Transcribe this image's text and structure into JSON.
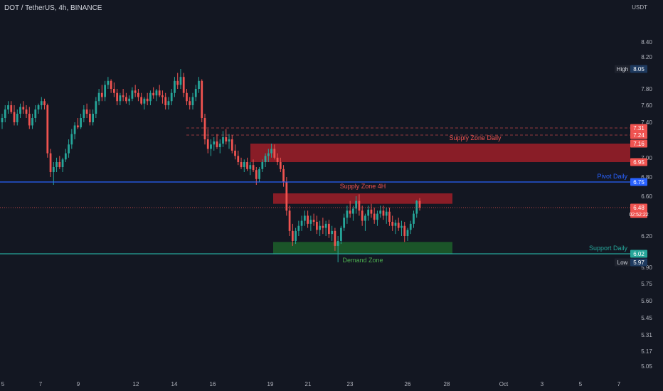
{
  "header": {
    "symbol": "DOT / TetherUS, 4h, BINANCE",
    "currency": "USDT"
  },
  "colors": {
    "background": "#131722",
    "up": "#26a69a",
    "down": "#ef5350",
    "pivot": "#2962ff",
    "support": "#26a69a",
    "supply_zone": "#b2202a",
    "demand_zone": "#1f6b2c",
    "axis_text": "#b2b5be"
  },
  "chart_data": {
    "type": "candlestick",
    "y_axis": {
      "ticks": [
        "8.40",
        "8.20",
        "7.80",
        "7.60",
        "7.40",
        "7.00",
        "6.80",
        "6.60",
        "6.20",
        "5.90",
        "5.75",
        "5.60",
        "5.45",
        "5.31",
        "5.17",
        "5.05"
      ],
      "price_labels": [
        {
          "label": "High",
          "value": "8.05",
          "style": "high"
        },
        {
          "value": "7.31",
          "style": "red"
        },
        {
          "value": "7.24",
          "style": "red"
        },
        {
          "value": "7.16",
          "style": "red"
        },
        {
          "value": "6.95",
          "style": "red"
        },
        {
          "value": "6.75",
          "style": "blue"
        },
        {
          "value": "6.48",
          "sub": "02:52:22",
          "style": "red"
        },
        {
          "value": "6.02",
          "style": "green"
        },
        {
          "label": "Low",
          "value": "5.97",
          "style": "low"
        }
      ]
    },
    "x_axis": {
      "ticks": [
        "5",
        "7",
        "9",
        "12",
        "14",
        "16",
        "19",
        "21",
        "23",
        "26",
        "28",
        "Oct",
        "3",
        "5",
        "7"
      ]
    },
    "lines": [
      {
        "name": "Pivot Daily",
        "value": 6.75,
        "color": "#2962ff"
      },
      {
        "name": "Support Daily",
        "value": 6.02,
        "color": "#26a69a"
      }
    ],
    "zones": [
      {
        "name": "Supply Zone Daily",
        "low": 6.95,
        "high": 7.16,
        "color": "#b2202a"
      },
      {
        "name": "Supply Zone 4H",
        "low": 6.52,
        "high": 6.63,
        "color": "#b2202a"
      },
      {
        "name": "Demand Zone",
        "low": 6.02,
        "high": 6.14,
        "color": "#1f6b2c"
      }
    ],
    "last_price": 6.48,
    "series_ohlc": [
      [
        7.4,
        7.5,
        7.3,
        7.45
      ],
      [
        7.45,
        7.6,
        7.4,
        7.55
      ],
      [
        7.55,
        7.65,
        7.5,
        7.6
      ],
      [
        7.6,
        7.65,
        7.5,
        7.52
      ],
      [
        7.52,
        7.6,
        7.35,
        7.4
      ],
      [
        7.4,
        7.55,
        7.35,
        7.5
      ],
      [
        7.5,
        7.62,
        7.45,
        7.58
      ],
      [
        7.58,
        7.65,
        7.5,
        7.55
      ],
      [
        7.55,
        7.6,
        7.45,
        7.5
      ],
      [
        7.5,
        7.58,
        7.3,
        7.35
      ],
      [
        7.35,
        7.5,
        7.3,
        7.45
      ],
      [
        7.45,
        7.6,
        7.4,
        7.55
      ],
      [
        7.55,
        7.62,
        7.5,
        7.6
      ],
      [
        7.6,
        7.7,
        7.55,
        7.65
      ],
      [
        7.65,
        7.68,
        7.55,
        7.6
      ],
      [
        7.6,
        7.62,
        7.0,
        7.05
      ],
      [
        7.05,
        7.1,
        6.8,
        6.85
      ],
      [
        6.85,
        6.95,
        6.72,
        6.9
      ],
      [
        6.9,
        7.0,
        6.85,
        6.95
      ],
      [
        6.95,
        7.02,
        6.88,
        6.9
      ],
      [
        6.9,
        7.0,
        6.85,
        6.98
      ],
      [
        6.98,
        7.1,
        6.95,
        7.05
      ],
      [
        7.05,
        7.2,
        7.0,
        7.15
      ],
      [
        7.15,
        7.3,
        7.1,
        7.25
      ],
      [
        7.25,
        7.4,
        7.2,
        7.35
      ],
      [
        7.35,
        7.45,
        7.3,
        7.32
      ],
      [
        7.32,
        7.5,
        7.3,
        7.45
      ],
      [
        7.45,
        7.6,
        7.4,
        7.55
      ],
      [
        7.55,
        7.62,
        7.45,
        7.5
      ],
      [
        7.5,
        7.55,
        7.35,
        7.4
      ],
      [
        7.4,
        7.55,
        7.35,
        7.5
      ],
      [
        7.5,
        7.7,
        7.45,
        7.65
      ],
      [
        7.65,
        7.8,
        7.6,
        7.75
      ],
      [
        7.75,
        7.85,
        7.65,
        7.7
      ],
      [
        7.7,
        7.9,
        7.65,
        7.85
      ],
      [
        7.85,
        7.95,
        7.8,
        7.9
      ],
      [
        7.9,
        7.92,
        7.75,
        7.8
      ],
      [
        7.8,
        7.88,
        7.7,
        7.75
      ],
      [
        7.75,
        7.8,
        7.6,
        7.65
      ],
      [
        7.65,
        7.75,
        7.6,
        7.72
      ],
      [
        7.72,
        7.8,
        7.65,
        7.7
      ],
      [
        7.7,
        7.75,
        7.62,
        7.65
      ],
      [
        7.65,
        7.72,
        7.6,
        7.68
      ],
      [
        7.68,
        7.82,
        7.65,
        7.78
      ],
      [
        7.78,
        7.85,
        7.7,
        7.75
      ],
      [
        7.75,
        7.8,
        7.65,
        7.7
      ],
      [
        7.7,
        7.75,
        7.6,
        7.62
      ],
      [
        7.62,
        7.7,
        7.55,
        7.68
      ],
      [
        7.68,
        7.75,
        7.6,
        7.65
      ],
      [
        7.65,
        7.78,
        7.6,
        7.75
      ],
      [
        7.75,
        7.82,
        7.68,
        7.72
      ],
      [
        7.72,
        7.8,
        7.65,
        7.78
      ],
      [
        7.78,
        7.85,
        7.7,
        7.72
      ],
      [
        7.72,
        7.78,
        7.62,
        7.7
      ],
      [
        7.7,
        7.75,
        7.55,
        7.6
      ],
      [
        7.6,
        7.7,
        7.55,
        7.65
      ],
      [
        7.65,
        7.8,
        7.6,
        7.75
      ],
      [
        7.75,
        7.95,
        7.7,
        7.9
      ],
      [
        7.9,
        8.0,
        7.8,
        7.85
      ],
      [
        7.85,
        8.05,
        7.8,
        7.95
      ],
      [
        7.95,
        8.0,
        7.7,
        7.75
      ],
      [
        7.75,
        7.8,
        7.6,
        7.65
      ],
      [
        7.65,
        7.7,
        7.55,
        7.6
      ],
      [
        7.6,
        7.75,
        7.55,
        7.7
      ],
      [
        7.7,
        7.85,
        7.65,
        7.8
      ],
      [
        7.8,
        7.95,
        7.75,
        7.9
      ],
      [
        7.9,
        7.92,
        7.4,
        7.45
      ],
      [
        7.45,
        7.5,
        7.15,
        7.2
      ],
      [
        7.2,
        7.3,
        7.05,
        7.1
      ],
      [
        7.1,
        7.2,
        7.02,
        7.15
      ],
      [
        7.15,
        7.22,
        7.08,
        7.18
      ],
      [
        7.18,
        7.25,
        7.1,
        7.12
      ],
      [
        7.12,
        7.2,
        7.05,
        7.16
      ],
      [
        7.16,
        7.28,
        7.12,
        7.22
      ],
      [
        7.22,
        7.3,
        7.15,
        7.18
      ],
      [
        7.18,
        7.25,
        7.1,
        7.2
      ],
      [
        7.2,
        7.24,
        7.05,
        7.08
      ],
      [
        7.08,
        7.15,
        6.98,
        7.02
      ],
      [
        7.02,
        7.08,
        6.92,
        6.95
      ],
      [
        6.95,
        7.0,
        6.88,
        6.9
      ],
      [
        6.9,
        6.98,
        6.85,
        6.95
      ],
      [
        6.95,
        7.0,
        6.86,
        6.88
      ],
      [
        6.88,
        6.95,
        6.82,
        6.92
      ],
      [
        6.92,
        6.98,
        6.85,
        6.87
      ],
      [
        6.87,
        6.9,
        6.72,
        6.78
      ],
      [
        6.78,
        6.9,
        6.75,
        6.88
      ],
      [
        6.88,
        6.98,
        6.85,
        6.95
      ],
      [
        6.95,
        7.05,
        6.9,
        7.02
      ],
      [
        7.02,
        7.1,
        6.95,
        7.05
      ],
      [
        7.05,
        7.16,
        7.0,
        7.1
      ],
      [
        7.1,
        7.15,
        6.98,
        7.0
      ],
      [
        7.0,
        7.05,
        6.92,
        6.95
      ],
      [
        6.95,
        7.0,
        6.85,
        6.88
      ],
      [
        6.88,
        6.92,
        6.7,
        6.75
      ],
      [
        6.75,
        6.8,
        6.4,
        6.45
      ],
      [
        6.45,
        6.5,
        6.2,
        6.25
      ],
      [
        6.25,
        6.32,
        6.1,
        6.15
      ],
      [
        6.15,
        6.28,
        6.12,
        6.25
      ],
      [
        6.25,
        6.35,
        6.2,
        6.3
      ],
      [
        6.3,
        6.4,
        6.25,
        6.35
      ],
      [
        6.35,
        6.45,
        6.3,
        6.4
      ],
      [
        6.4,
        6.45,
        6.28,
        6.32
      ],
      [
        6.32,
        6.4,
        6.25,
        6.36
      ],
      [
        6.36,
        6.42,
        6.3,
        6.34
      ],
      [
        6.34,
        6.4,
        6.22,
        6.26
      ],
      [
        6.26,
        6.35,
        6.2,
        6.3
      ],
      [
        6.3,
        6.38,
        6.22,
        6.28
      ],
      [
        6.28,
        6.35,
        6.2,
        6.32
      ],
      [
        6.32,
        6.36,
        6.18,
        6.22
      ],
      [
        6.22,
        6.3,
        6.15,
        6.25
      ],
      [
        6.25,
        6.28,
        6.05,
        6.1
      ],
      [
        6.1,
        6.2,
        5.97,
        6.15
      ],
      [
        6.15,
        6.3,
        6.12,
        6.28
      ],
      [
        6.28,
        6.42,
        6.25,
        6.38
      ],
      [
        6.38,
        6.5,
        6.32,
        6.45
      ],
      [
        6.45,
        6.55,
        6.38,
        6.42
      ],
      [
        6.42,
        6.5,
        6.35,
        6.47
      ],
      [
        6.47,
        6.6,
        6.42,
        6.55
      ],
      [
        6.55,
        6.62,
        6.4,
        6.45
      ],
      [
        6.45,
        6.5,
        6.3,
        6.35
      ],
      [
        6.35,
        6.42,
        6.25,
        6.4
      ],
      [
        6.4,
        6.5,
        6.35,
        6.46
      ],
      [
        6.46,
        6.52,
        6.38,
        6.42
      ],
      [
        6.42,
        6.48,
        6.32,
        6.36
      ],
      [
        6.36,
        6.45,
        6.3,
        6.42
      ],
      [
        6.42,
        6.5,
        6.38,
        6.45
      ],
      [
        6.45,
        6.5,
        6.36,
        6.4
      ],
      [
        6.4,
        6.48,
        6.32,
        6.44
      ],
      [
        6.44,
        6.48,
        6.3,
        6.34
      ],
      [
        6.34,
        6.4,
        6.25,
        6.3
      ],
      [
        6.3,
        6.36,
        6.22,
        6.33
      ],
      [
        6.33,
        6.38,
        6.25,
        6.28
      ],
      [
        6.28,
        6.35,
        6.2,
        6.3
      ],
      [
        6.3,
        6.34,
        6.14,
        6.2
      ],
      [
        6.2,
        6.28,
        6.15,
        6.26
      ],
      [
        6.26,
        6.35,
        6.22,
        6.32
      ],
      [
        6.32,
        6.45,
        6.28,
        6.42
      ],
      [
        6.42,
        6.56,
        6.38,
        6.55
      ],
      [
        6.55,
        6.58,
        6.45,
        6.48
      ]
    ]
  }
}
